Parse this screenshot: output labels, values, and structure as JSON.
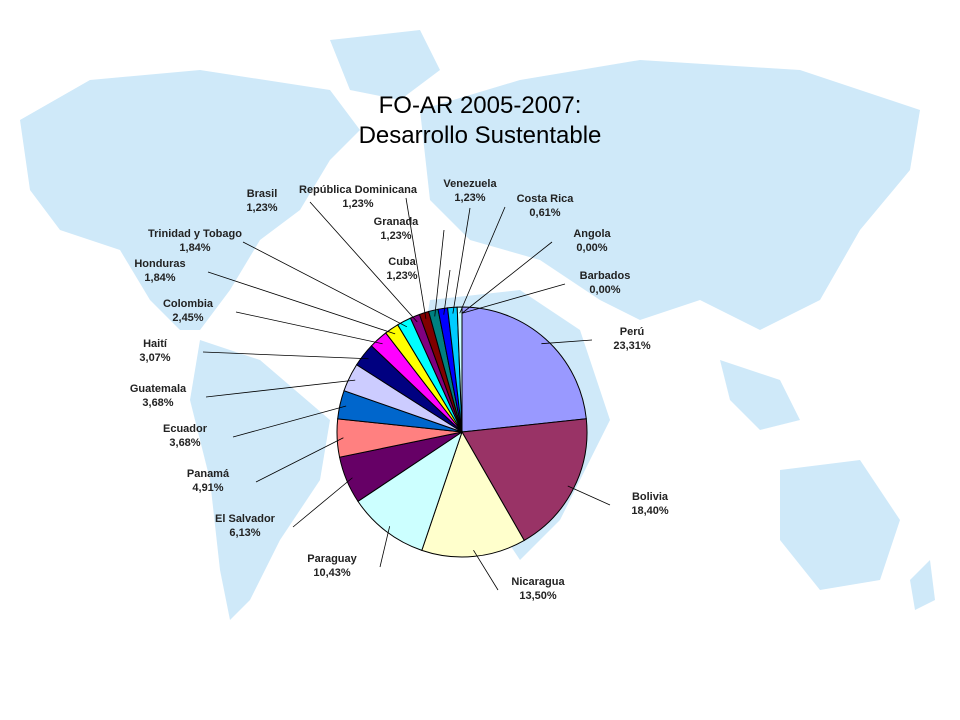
{
  "chart_data": {
    "type": "pie",
    "title": [
      "FO-AR 2005-2007:",
      "Desarrollo Sustentable"
    ],
    "categories": [
      "Perú",
      "Bolivia",
      "Nicaragua",
      "Paraguay",
      "El Salvador",
      "Panamá",
      "Ecuador",
      "Guatemala",
      "Haití",
      "Colombia",
      "Honduras",
      "Trinidad y Tobago",
      "Brasil",
      "República Dominicana",
      "Granada",
      "Cuba",
      "Venezuela",
      "Costa Rica",
      "Angola",
      "Barbados"
    ],
    "values": [
      23.31,
      18.4,
      13.5,
      10.43,
      6.13,
      4.91,
      3.68,
      3.68,
      3.07,
      2.45,
      1.84,
      1.84,
      1.23,
      1.23,
      1.23,
      1.23,
      1.23,
      0.61,
      0.0,
      0.0
    ],
    "value_labels": [
      "23,31%",
      "18,40%",
      "13,50%",
      "10,43%",
      "6,13%",
      "4,91%",
      "3,68%",
      "3,68%",
      "3,07%",
      "2,45%",
      "1,84%",
      "1,84%",
      "1,23%",
      "1,23%",
      "1,23%",
      "1,23%",
      "1,23%",
      "0,61%",
      "0,00%",
      "0,00%"
    ],
    "colors": [
      "#9999FF",
      "#993366",
      "#FFFFCC",
      "#CCFFFF",
      "#660066",
      "#FF8080",
      "#0066CC",
      "#CCCCFF",
      "#000080",
      "#FF00FF",
      "#FFFF00",
      "#00FFFF",
      "#800080",
      "#800000",
      "#008080",
      "#0000FF",
      "#00CCFF",
      "#CCFFFF",
      "#FFFFFF",
      "#FFFFFF"
    ]
  }
}
